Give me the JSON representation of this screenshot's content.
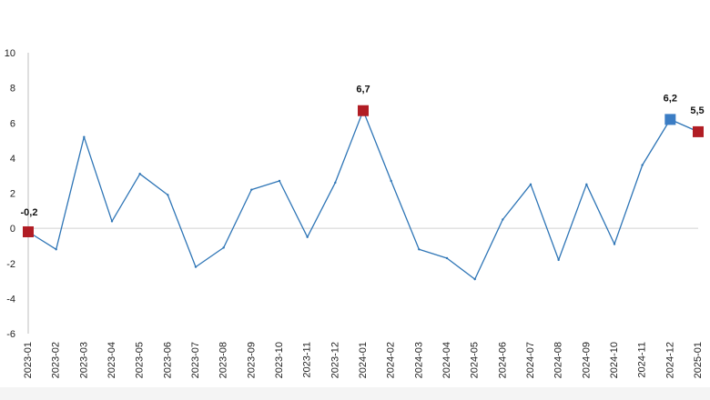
{
  "chart_data": {
    "type": "line",
    "x": [
      "2023-01",
      "2023-02",
      "2023-03",
      "2023-04",
      "2023-05",
      "2023-06",
      "2023-07",
      "2023-08",
      "2023-09",
      "2023-10",
      "2023-11",
      "2023-12",
      "2024-01",
      "2024-02",
      "2024-03",
      "2024-04",
      "2024-05",
      "2024-06",
      "2024-07",
      "2024-08",
      "2024-09",
      "2024-10",
      "2024-11",
      "2024-12",
      "2025-01"
    ],
    "series": [
      {
        "values": [
          -0.2,
          -1.2,
          5.2,
          0.4,
          3.1,
          1.9,
          -2.2,
          -1.1,
          2.2,
          2.7,
          -0.5,
          2.6,
          6.7,
          2.7,
          -1.2,
          -1.7,
          -2.9,
          0.5,
          2.5,
          -1.8,
          2.5,
          -0.9,
          3.6,
          6.2,
          5.5
        ],
        "color": "#2e75b6"
      }
    ],
    "ylim": [
      -6,
      10
    ],
    "yticks": [
      -6,
      -4,
      -2,
      0,
      2,
      4,
      6,
      8,
      10
    ],
    "ytick_labels": [
      "-6",
      "-4",
      "-2",
      "0",
      "2",
      "4",
      "6",
      "8",
      "10"
    ],
    "annotations": [
      {
        "index": 0,
        "label": "-0,2",
        "marker_color": "#b11d24"
      },
      {
        "index": 12,
        "label": "6,7",
        "marker_color": "#b11d24"
      },
      {
        "index": 23,
        "label": "6,2",
        "marker_color": "#3b7dc4"
      },
      {
        "index": 24,
        "label": "5,5",
        "marker_color": "#b11d24"
      }
    ],
    "grid": false,
    "zero_line": true,
    "title": "",
    "xlabel": "",
    "ylabel": ""
  }
}
